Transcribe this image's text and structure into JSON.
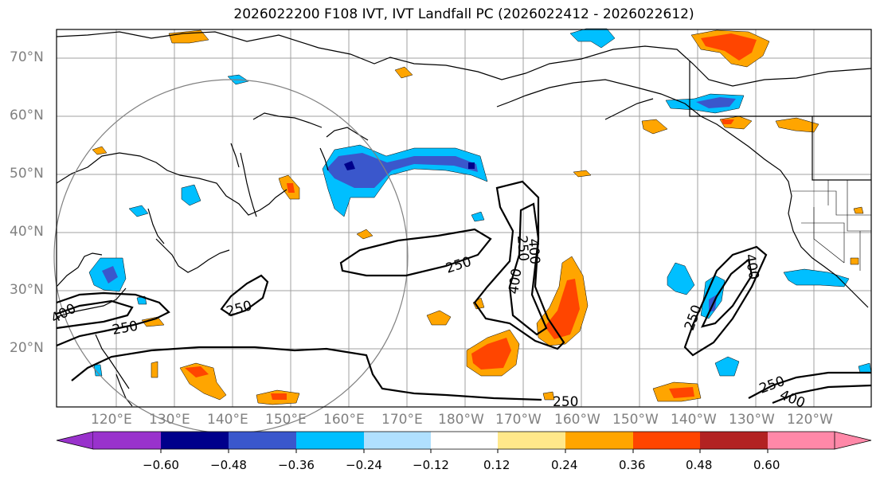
{
  "title": "2026022200 F108 IVT, IVT Landfall PC (2026022412 - 2026022612)",
  "lat_labels": [
    "70°N",
    "60°N",
    "50°N",
    "40°N",
    "30°N",
    "20°N"
  ],
  "lon_labels": [
    "120°E",
    "130°E",
    "140°E",
    "150°E",
    "160°E",
    "170°E",
    "180°W",
    "170°W",
    "160°W",
    "150°W",
    "140°W",
    "130°W",
    "120°W"
  ],
  "contour_labels": [
    "250",
    "250",
    "250",
    "250",
    "250",
    "250",
    "400",
    "400",
    "400",
    "400",
    "250",
    "400"
  ],
  "colorbar": {
    "ticks": [
      "−0.60",
      "−0.48",
      "−0.36",
      "−0.24",
      "−0.12",
      "0.12",
      "0.24",
      "0.36",
      "0.48",
      "0.60"
    ],
    "colors": [
      "#9932cc",
      "#00008b",
      "#3a57cc",
      "#00bfff",
      "#b0e0fe",
      "#ffffff",
      "#ffe88a",
      "#ffa500",
      "#ff4500",
      "#b22222",
      "#ff88a8"
    ]
  },
  "colors": {
    "contour": "#000000",
    "circle": "#808080",
    "grid": "#a0a0a0",
    "tick_label": "#808080"
  }
}
